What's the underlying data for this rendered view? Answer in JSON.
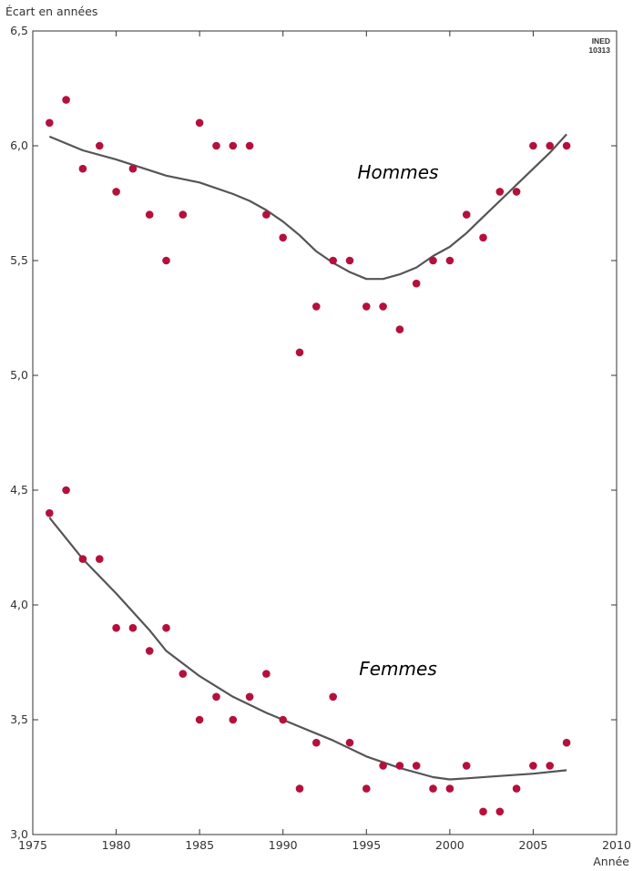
{
  "chart_data": {
    "type": "scatter",
    "ylabel": "Écart en années",
    "xlabel": "Année",
    "source_code": [
      "INED",
      "10313"
    ],
    "xlim": [
      1975,
      2010
    ],
    "ylim": [
      3.0,
      6.5
    ],
    "xticks": [
      1975,
      1980,
      1985,
      1990,
      1995,
      2000,
      2005,
      2010
    ],
    "xtick_labels": [
      "1975",
      "1980",
      "1985",
      "1990",
      "1995",
      "2000",
      "2005",
      "2010"
    ],
    "yticks": [
      3.0,
      3.5,
      4.0,
      4.5,
      5.0,
      5.5,
      6.0,
      6.5
    ],
    "ytick_labels": [
      "3,0",
      "3,5",
      "4,0",
      "4,5",
      "5,0",
      "5,5",
      "6,0",
      "6,5"
    ],
    "colors": {
      "points": "#b5103c",
      "trend": "#555555",
      "axis": "#333333"
    },
    "series": [
      {
        "name": "Hommes",
        "x": [
          1976,
          1977,
          1978,
          1979,
          1980,
          1981,
          1982,
          1983,
          1984,
          1985,
          1986,
          1987,
          1988,
          1989,
          1990,
          1991,
          1992,
          1993,
          1994,
          1995,
          1996,
          1997,
          1998,
          1999,
          2000,
          2001,
          2002,
          2003,
          2004,
          2005,
          2006,
          2007
        ],
        "values": [
          6.1,
          6.2,
          5.9,
          6.0,
          5.8,
          5.9,
          5.7,
          5.5,
          5.7,
          6.1,
          6.0,
          6.0,
          6.0,
          5.7,
          5.6,
          5.1,
          5.3,
          5.5,
          5.5,
          5.3,
          5.3,
          5.2,
          5.4,
          5.5,
          5.5,
          5.7,
          5.6,
          5.8,
          5.8,
          6.0,
          6.0,
          6.0
        ],
        "trend": {
          "x": [
            1976,
            1978,
            1980,
            1983,
            1985,
            1987,
            1988,
            1989,
            1990,
            1991,
            1992,
            1993,
            1994,
            1995,
            1996,
            1997,
            1998,
            1999,
            2000,
            2001,
            2002,
            2003,
            2004,
            2005,
            2006,
            2007
          ],
          "y": [
            6.04,
            5.98,
            5.94,
            5.87,
            5.84,
            5.79,
            5.76,
            5.72,
            5.67,
            5.61,
            5.54,
            5.49,
            5.45,
            5.42,
            5.42,
            5.44,
            5.47,
            5.52,
            5.56,
            5.62,
            5.69,
            5.76,
            5.83,
            5.9,
            5.97,
            6.05
          ]
        }
      },
      {
        "name": "Femmes",
        "x": [
          1976,
          1977,
          1978,
          1979,
          1980,
          1981,
          1982,
          1983,
          1984,
          1985,
          1986,
          1987,
          1988,
          1989,
          1990,
          1991,
          1992,
          1993,
          1994,
          1995,
          1996,
          1997,
          1998,
          1999,
          2000,
          2001,
          2002,
          2003,
          2004,
          2005,
          2006,
          2007
        ],
        "values": [
          4.4,
          4.5,
          4.2,
          4.2,
          3.9,
          3.9,
          3.8,
          3.9,
          3.7,
          3.5,
          3.6,
          3.5,
          3.6,
          3.7,
          3.5,
          3.2,
          3.4,
          3.6,
          3.4,
          3.2,
          3.3,
          3.3,
          3.3,
          3.2,
          3.2,
          3.3,
          3.1,
          3.1,
          3.2,
          3.3,
          3.3,
          3.4
        ],
        "trend": {
          "x": [
            1976,
            1978,
            1980,
            1982,
            1983,
            1985,
            1987,
            1989,
            1991,
            1993,
            1995,
            1997,
            1999,
            2000,
            2001,
            2003,
            2005,
            2007
          ],
          "y": [
            4.38,
            4.2,
            4.05,
            3.89,
            3.8,
            3.69,
            3.6,
            3.53,
            3.47,
            3.41,
            3.34,
            3.29,
            3.25,
            3.24,
            3.245,
            3.255,
            3.265,
            3.28
          ]
        }
      }
    ]
  }
}
